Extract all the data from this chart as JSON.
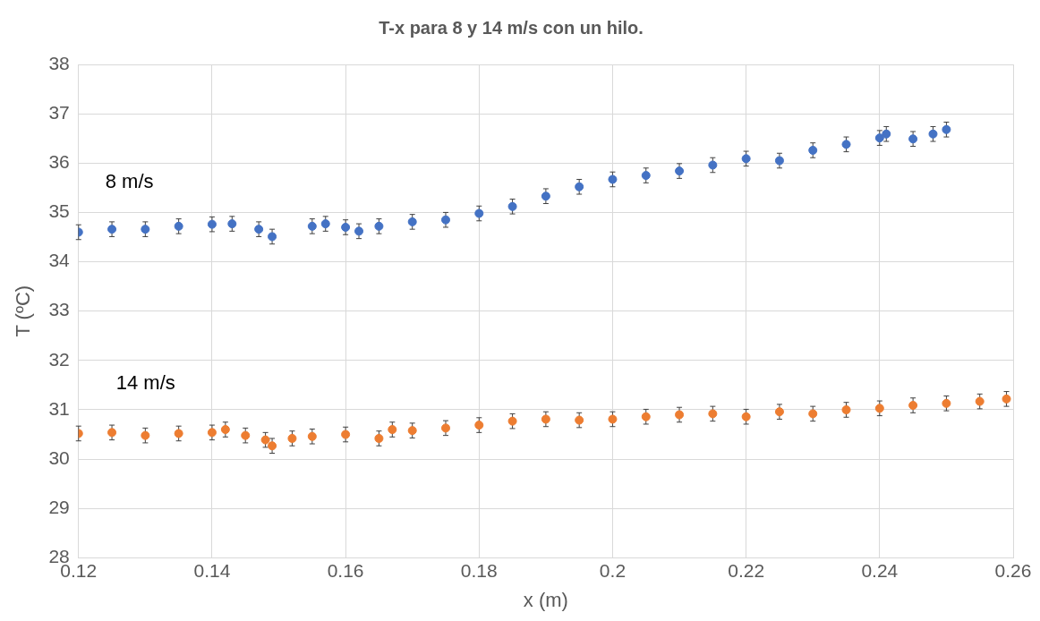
{
  "chart_data": {
    "type": "scatter",
    "title": "T-x para 8 y 14 m/s con un hilo.",
    "xlabel": "x (m)",
    "ylabel": "T (ºC)",
    "xlim": [
      0.12,
      0.26
    ],
    "xticks": [
      0.12,
      0.14,
      0.16,
      0.18,
      0.2,
      0.22,
      0.24,
      0.26
    ],
    "ylim": [
      28,
      38
    ],
    "yticks": [
      28,
      29,
      30,
      31,
      32,
      33,
      34,
      35,
      36,
      37,
      38
    ],
    "grid": true,
    "legend": false,
    "marker": "circle",
    "series": [
      {
        "name": "8 m/s",
        "color": "#4472c4",
        "x": [
          0.12,
          0.125,
          0.13,
          0.135,
          0.14,
          0.143,
          0.147,
          0.149,
          0.155,
          0.157,
          0.16,
          0.162,
          0.165,
          0.17,
          0.175,
          0.18,
          0.185,
          0.19,
          0.195,
          0.2,
          0.205,
          0.21,
          0.215,
          0.22,
          0.225,
          0.23,
          0.235,
          0.24,
          0.241,
          0.245,
          0.248,
          0.25
        ],
        "values": [
          34.6,
          34.66,
          34.66,
          34.72,
          34.76,
          34.77,
          34.66,
          34.51,
          34.72,
          34.77,
          34.7,
          34.62,
          34.72,
          34.81,
          34.85,
          34.98,
          35.12,
          35.33,
          35.52,
          35.67,
          35.75,
          35.84,
          35.96,
          36.09,
          36.05,
          36.26,
          36.38,
          36.51,
          36.59,
          36.49,
          36.59,
          36.68
        ],
        "errors": [
          0.15,
          0.15,
          0.15,
          0.15,
          0.15,
          0.15,
          0.15,
          0.15,
          0.15,
          0.15,
          0.15,
          0.15,
          0.15,
          0.15,
          0.15,
          0.15,
          0.15,
          0.15,
          0.15,
          0.15,
          0.15,
          0.15,
          0.15,
          0.15,
          0.15,
          0.15,
          0.15,
          0.15,
          0.15,
          0.15,
          0.15,
          0.15
        ]
      },
      {
        "name": "14 m/s",
        "color": "#ed7d31",
        "x": [
          0.12,
          0.125,
          0.13,
          0.135,
          0.14,
          0.142,
          0.145,
          0.148,
          0.149,
          0.152,
          0.155,
          0.16,
          0.165,
          0.167,
          0.17,
          0.175,
          0.18,
          0.185,
          0.19,
          0.195,
          0.2,
          0.205,
          0.21,
          0.215,
          0.22,
          0.225,
          0.23,
          0.235,
          0.24,
          0.245,
          0.25,
          0.255,
          0.259
        ],
        "values": [
          30.52,
          30.54,
          30.48,
          30.52,
          30.54,
          30.6,
          30.48,
          30.39,
          30.27,
          30.42,
          30.46,
          30.5,
          30.42,
          30.6,
          30.58,
          30.63,
          30.69,
          30.77,
          30.81,
          30.79,
          30.81,
          30.86,
          30.9,
          30.92,
          30.86,
          30.96,
          30.92,
          31.0,
          31.03,
          31.09,
          31.13,
          31.17,
          31.22
        ],
        "errors": [
          0.15,
          0.15,
          0.15,
          0.15,
          0.15,
          0.15,
          0.15,
          0.15,
          0.15,
          0.15,
          0.15,
          0.15,
          0.15,
          0.15,
          0.15,
          0.15,
          0.15,
          0.15,
          0.15,
          0.15,
          0.15,
          0.15,
          0.15,
          0.15,
          0.15,
          0.15,
          0.15,
          0.15,
          0.15,
          0.15,
          0.15,
          0.15,
          0.15
        ]
      }
    ]
  }
}
